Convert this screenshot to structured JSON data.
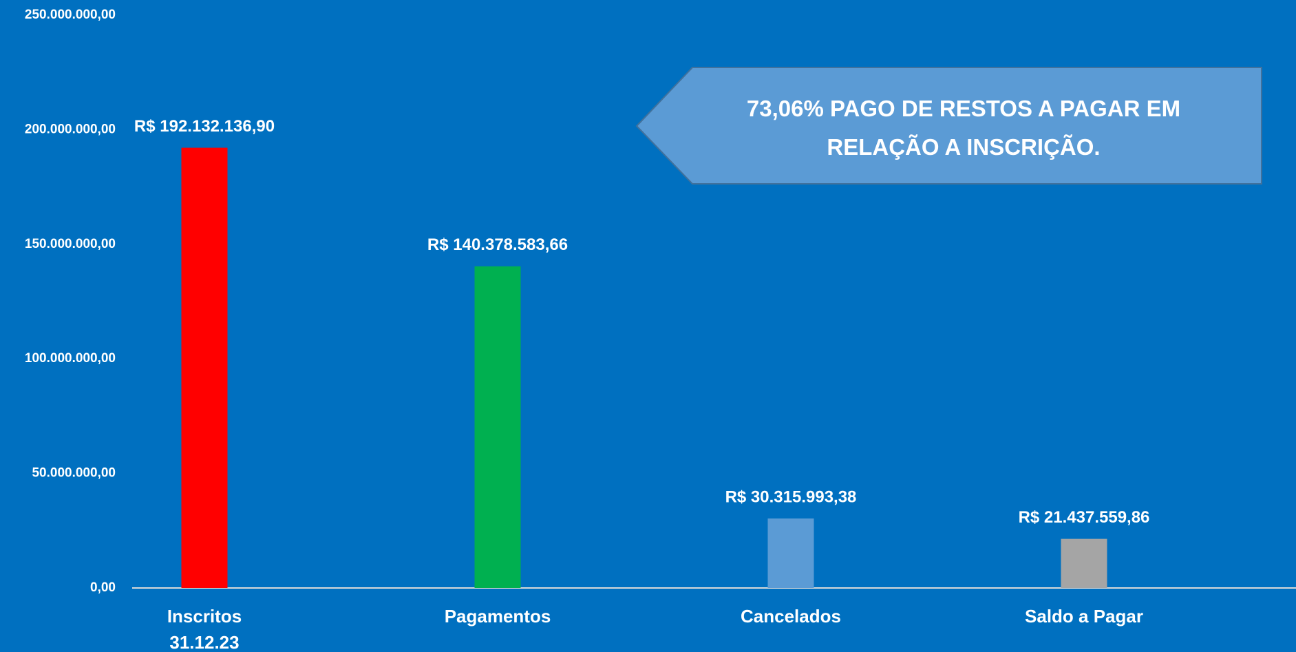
{
  "chart_data": {
    "type": "bar",
    "categories": [
      "Inscritos\n31.12.23",
      "Pagamentos",
      "Cancelados",
      "Saldo a Pagar"
    ],
    "values": [
      192132136.9,
      140378583.66,
      30315993.38,
      21437559.86
    ],
    "value_labels": [
      "R$ 192.132.136,90",
      "R$ 140.378.583,66",
      "R$ 30.315.993,38",
      "R$ 21.437.559,86"
    ],
    "colors": [
      "#ff0000",
      "#00b050",
      "#5b9bd5",
      "#a5a5a5"
    ],
    "ylim": [
      0,
      250000000
    ],
    "yticks": [
      {
        "value": 0,
        "label": "0,00"
      },
      {
        "value": 50000000,
        "label": "50.000.000,00"
      },
      {
        "value": 100000000,
        "label": "100.000.000,00"
      },
      {
        "value": 150000000,
        "label": "150.000.000,00"
      },
      {
        "value": 200000000,
        "label": "200.000.000,00"
      },
      {
        "value": 250000000,
        "label": "250.000.000,00"
      }
    ],
    "grid": false,
    "annotation": "73,06% PAGO DE RESTOS A PAGAR EM RELAÇÃO A INSCRIÇÃO."
  }
}
